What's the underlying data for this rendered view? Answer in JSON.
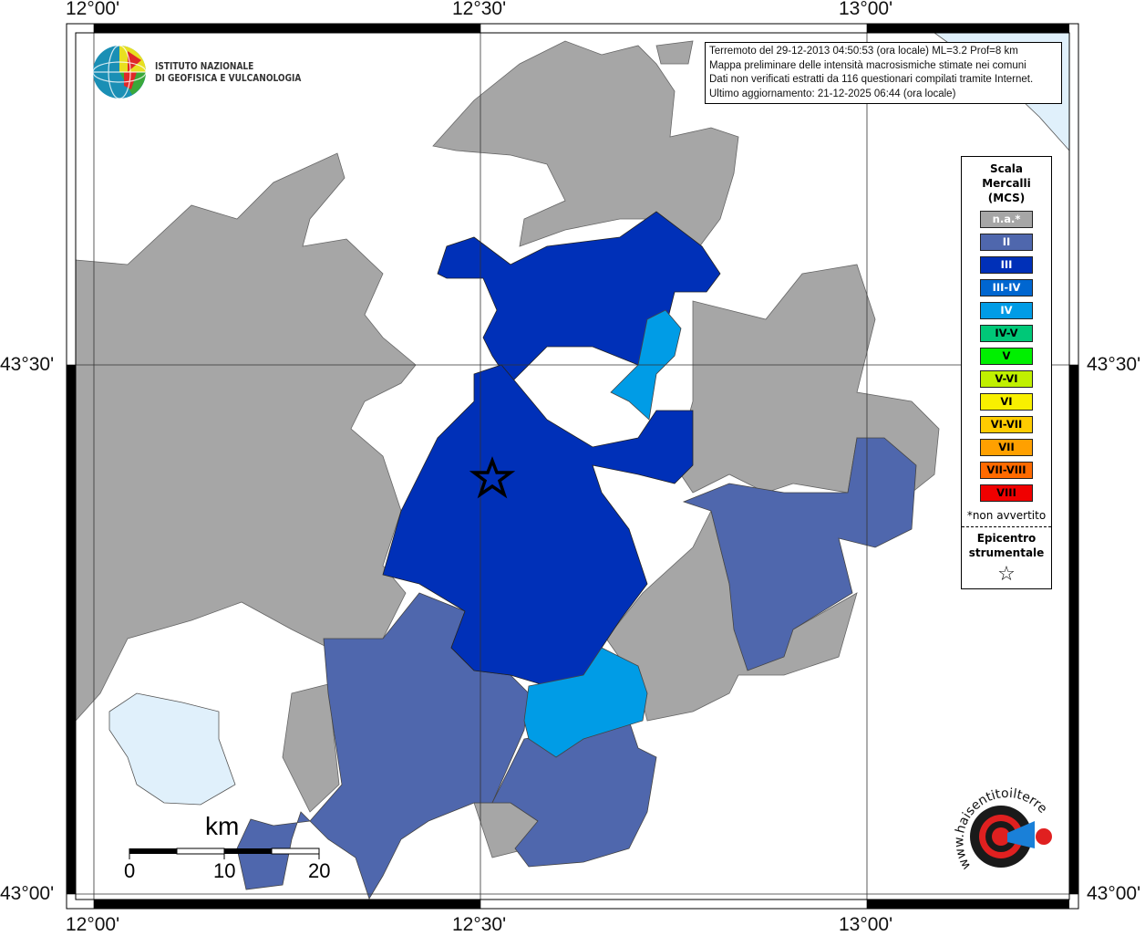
{
  "axes": {
    "top_ticks": [
      "12°00'",
      "12°30'",
      "13°00'"
    ],
    "bottom_ticks": [
      "12°00'",
      "12°30'",
      "13°00'"
    ],
    "left_ticks": [
      "43°30'",
      "43°00'"
    ],
    "right_ticks": [
      "43°30'",
      "43°00'"
    ]
  },
  "logo_ingv": {
    "line1": "ISTITUTO NAZIONALE",
    "line2": "DI GEOFISICA E VULCANOLOGIA"
  },
  "info": {
    "line1": "Terremoto del 29-12-2013 04:50:53 (ora locale) ML=3.2 Prof=8 km",
    "line2": "Mappa preliminare delle intensità macrosismiche stimate nei comuni",
    "line3": "Dati non verificati estratti da 116 questionari compilati tramite Internet.",
    "line4": "Ultimo aggiornamento: 21-12-2025 06:44 (ora locale)"
  },
  "legend": {
    "title1": "Scala",
    "title2": "Mercalli",
    "title3": "(MCS)",
    "items": [
      {
        "label": "n.a.*",
        "color": "#a6a6a6",
        "text": "#ffffff"
      },
      {
        "label": "II",
        "color": "#4f67ad",
        "text": "#ffffff"
      },
      {
        "label": "III",
        "color": "#0030b8",
        "text": "#ffffff"
      },
      {
        "label": "III-IV",
        "color": "#0066d0",
        "text": "#ffffff"
      },
      {
        "label": "IV",
        "color": "#009ce6",
        "text": "#ffffff"
      },
      {
        "label": "IV-V",
        "color": "#00c878",
        "text": "#000000"
      },
      {
        "label": "V",
        "color": "#00f000",
        "text": "#000000"
      },
      {
        "label": "V-VI",
        "color": "#c0f000",
        "text": "#000000"
      },
      {
        "label": "VI",
        "color": "#f8f000",
        "text": "#000000"
      },
      {
        "label": "VI-VII",
        "color": "#ffcc00",
        "text": "#000000"
      },
      {
        "label": "VII",
        "color": "#ffa000",
        "text": "#000000"
      },
      {
        "label": "VII-VIII",
        "color": "#ff6a00",
        "text": "#000000"
      },
      {
        "label": "VIII",
        "color": "#f00000",
        "text": "#000000"
      }
    ],
    "note": "*non avvertito",
    "epi1": "Epicentro",
    "epi2": "strumentale",
    "star": "☆"
  },
  "scale_bar": {
    "unit": "km",
    "labels": [
      "0",
      "10",
      "20"
    ]
  },
  "logo_hsit": {
    "text": "www.haisentitoilterremoto.it"
  },
  "colors": {
    "na": "#a6a6a6",
    "II": "#4f67ad",
    "III": "#0030b8",
    "IV": "#009ce6",
    "lake": "#e0f0fb"
  }
}
